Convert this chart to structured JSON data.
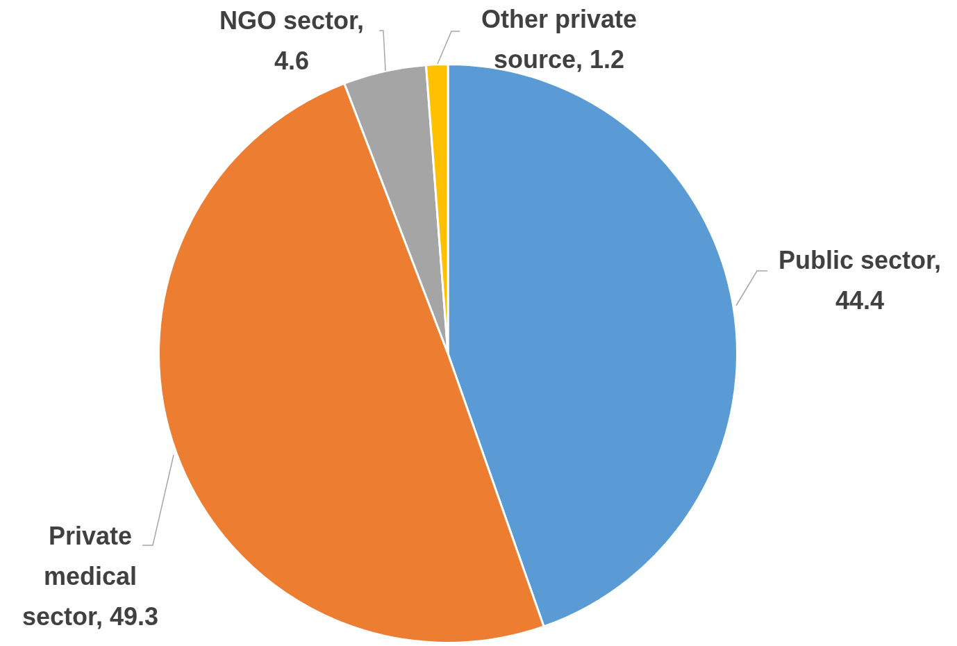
{
  "chart_data": {
    "type": "pie",
    "categories": [
      null,
      null,
      null,
      null
    ],
    "values": [
      44.4,
      49.3,
      4.6,
      1.2
    ],
    "value_labels": [
      "Public sector, 44.4",
      "Private medical sector, 49.3",
      "NGO sector, 4.6",
      "Other private source, 1.2"
    ],
    "colors": [
      "#5b9bd5",
      "#ed7d31",
      "#a5a5a5",
      "#ffc000"
    ]
  }
}
